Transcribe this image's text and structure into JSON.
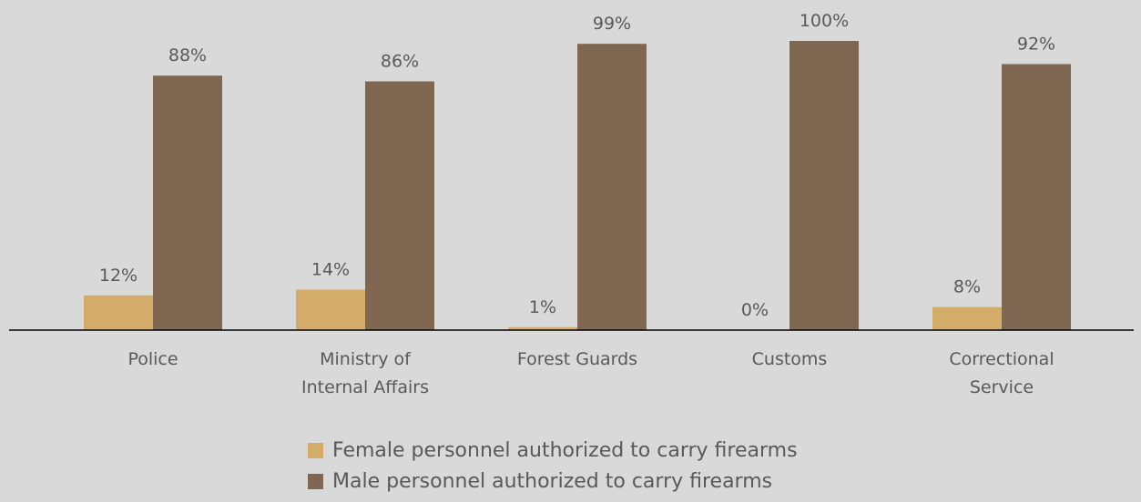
{
  "chart_data": {
    "type": "bar",
    "categories": [
      "Police",
      "Ministry of Internal Affairs",
      "Forest Guards",
      "Customs",
      "Correctional Service"
    ],
    "category_lines": [
      [
        "Police"
      ],
      [
        "Ministry of",
        "Internal Affairs"
      ],
      [
        "Forest Guards"
      ],
      [
        "Customs"
      ],
      [
        "Correctional",
        "Service"
      ]
    ],
    "series": [
      {
        "name": "Female personnel authorized to carry firearms",
        "values": [
          12,
          14,
          1,
          0,
          8
        ],
        "labels": [
          "12%",
          "14%",
          "1%",
          "0%",
          "8%"
        ],
        "color": "#d4ac6a"
      },
      {
        "name": "Male personnel authorized to carry firearms",
        "values": [
          88,
          86,
          99,
          100,
          92
        ],
        "labels": [
          "88%",
          "86%",
          "99%",
          "100%",
          "92%"
        ],
        "color": "#7f6751"
      }
    ],
    "ylim": [
      0,
      100
    ],
    "grid": false,
    "legend_position": "bottom",
    "title": "",
    "xlabel": "",
    "ylabel": ""
  }
}
